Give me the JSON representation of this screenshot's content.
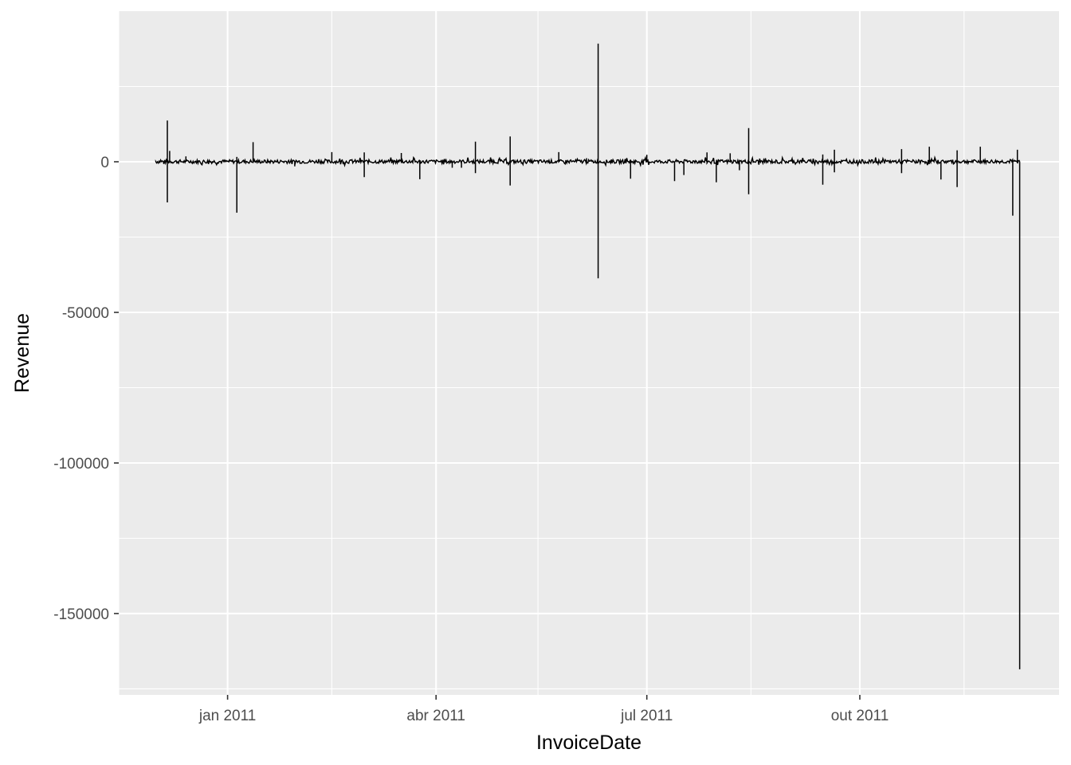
{
  "chart_data": {
    "type": "line",
    "xlabel": "InvoiceDate",
    "ylabel": "Revenue",
    "x_type": "date",
    "xlim": [
      "2010-11-15",
      "2011-12-26"
    ],
    "ylim": [
      -177000,
      50000
    ],
    "x_ticks": [
      {
        "date": "2011-01-01",
        "label": "jan 2011"
      },
      {
        "date": "2011-04-01",
        "label": "abr 2011"
      },
      {
        "date": "2011-07-01",
        "label": "jul 2011"
      },
      {
        "date": "2011-10-01",
        "label": "out 2011"
      }
    ],
    "x_minor_ticks": [
      "2010-11-15",
      "2011-02-15",
      "2011-05-15",
      "2011-08-15",
      "2011-11-15"
    ],
    "y_ticks": [
      {
        "value": 0,
        "label": "0"
      },
      {
        "value": -50000,
        "label": "-50000"
      },
      {
        "value": -100000,
        "label": "-100000"
      },
      {
        "value": -150000,
        "label": "-150000"
      }
    ],
    "y_minor_ticks": [
      25000,
      -25000,
      -75000,
      -125000,
      -175000
    ],
    "grid": true,
    "background": "#ebebeb",
    "grid_color": "#ffffff",
    "line_color": "#000000",
    "noise_amplitude": 1200,
    "series": [
      {
        "values": [
          {
            "x": "2010-12-06",
            "y": 13700
          },
          {
            "x": "2010-12-06",
            "y": -13500
          },
          {
            "x": "2010-12-07",
            "y": 3600
          },
          {
            "x": "2010-12-14",
            "y": 1800
          },
          {
            "x": "2011-01-05",
            "y": 1600
          },
          {
            "x": "2011-01-05",
            "y": -16900
          },
          {
            "x": "2011-01-12",
            "y": 6500
          },
          {
            "x": "2011-01-30",
            "y": -1500
          },
          {
            "x": "2011-02-15",
            "y": 3200
          },
          {
            "x": "2011-03-01",
            "y": 3100
          },
          {
            "x": "2011-03-01",
            "y": -5100
          },
          {
            "x": "2011-03-17",
            "y": 2900
          },
          {
            "x": "2011-03-25",
            "y": -5800
          },
          {
            "x": "2011-04-08",
            "y": -2000
          },
          {
            "x": "2011-04-12",
            "y": -2000
          },
          {
            "x": "2011-04-18",
            "y": 6700
          },
          {
            "x": "2011-04-18",
            "y": -3800
          },
          {
            "x": "2011-05-03",
            "y": 8400
          },
          {
            "x": "2011-05-03",
            "y": -7900
          },
          {
            "x": "2011-05-24",
            "y": 3200
          },
          {
            "x": "2011-06-05",
            "y": 1200
          },
          {
            "x": "2011-06-10",
            "y": 39200
          },
          {
            "x": "2011-06-10",
            "y": -38700
          },
          {
            "x": "2011-06-24",
            "y": -5600
          },
          {
            "x": "2011-07-01",
            "y": 2300
          },
          {
            "x": "2011-07-13",
            "y": -6400
          },
          {
            "x": "2011-07-17",
            "y": -4400
          },
          {
            "x": "2011-07-27",
            "y": 3100
          },
          {
            "x": "2011-07-31",
            "y": -6800
          },
          {
            "x": "2011-08-06",
            "y": 2800
          },
          {
            "x": "2011-08-10",
            "y": -2800
          },
          {
            "x": "2011-08-14",
            "y": 11200
          },
          {
            "x": "2011-08-14",
            "y": -10800
          },
          {
            "x": "2011-09-15",
            "y": 2400
          },
          {
            "x": "2011-09-15",
            "y": -7600
          },
          {
            "x": "2011-09-20",
            "y": 4000
          },
          {
            "x": "2011-09-20",
            "y": -3500
          },
          {
            "x": "2011-10-19",
            "y": 4200
          },
          {
            "x": "2011-10-19",
            "y": -3800
          },
          {
            "x": "2011-10-31",
            "y": 5000
          },
          {
            "x": "2011-11-05",
            "y": -5900
          },
          {
            "x": "2011-11-12",
            "y": 3800
          },
          {
            "x": "2011-11-12",
            "y": -8400
          },
          {
            "x": "2011-11-22",
            "y": 5000
          },
          {
            "x": "2011-12-06",
            "y": -17900
          },
          {
            "x": "2011-12-08",
            "y": 4000
          },
          {
            "x": "2011-12-09",
            "y": -168500
          }
        ]
      }
    ]
  }
}
